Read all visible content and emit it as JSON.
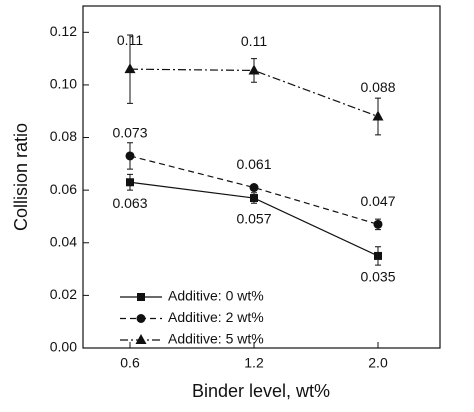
{
  "chart_data": {
    "type": "line",
    "x_label": "Binder level, wt%",
    "y_label": "Collision ratio",
    "categories": [
      "0.6",
      "1.2",
      "2.0"
    ],
    "ylim": [
      0,
      0.13
    ],
    "yticks": [
      {
        "value": 0,
        "label": "0.00"
      },
      0.02,
      0.04,
      0.06,
      0.08,
      {
        "value": 0.1,
        "label": "0.10"
      },
      0.12
    ],
    "legend": "lower left",
    "series": [
      {
        "name": "Additive: 0 wt%",
        "color": "#111111",
        "values": [
          0.063,
          0.057,
          0.035
        ],
        "errors": [
          0.003,
          0.002,
          0.0035
        ]
      },
      {
        "name": "Additive: 2 wt%",
        "color": "#111111",
        "values": [
          0.073,
          0.061,
          0.047
        ],
        "errors": [
          0.005,
          0.001,
          0.002
        ]
      },
      {
        "name": "Additive: 5 wt%",
        "color": "#111111",
        "values": [
          0.106,
          0.1055,
          0.088
        ],
        "errors": [
          0.013,
          0.0045,
          0.007
        ],
        "value_labels": [
          "0.11",
          "0.11",
          "0.088"
        ]
      }
    ]
  }
}
